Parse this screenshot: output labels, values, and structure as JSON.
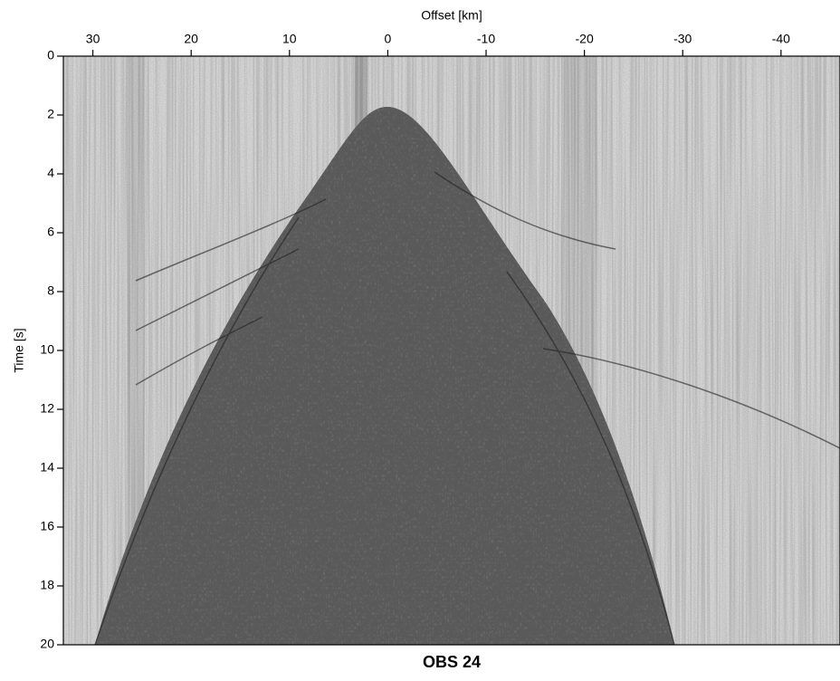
{
  "chart_data": {
    "type": "seismic-section",
    "title": "OBS 24",
    "xlabel": "Offset  [km]",
    "ylabel": "Time [s]",
    "xlim": [
      33,
      -46
    ],
    "xticks": [
      30,
      20,
      10,
      0,
      -10,
      -20,
      -30,
      -40
    ],
    "ylim": [
      0,
      20
    ],
    "yticks": [
      0,
      2,
      4,
      6,
      8,
      10,
      12,
      14,
      16,
      18,
      20
    ]
  }
}
